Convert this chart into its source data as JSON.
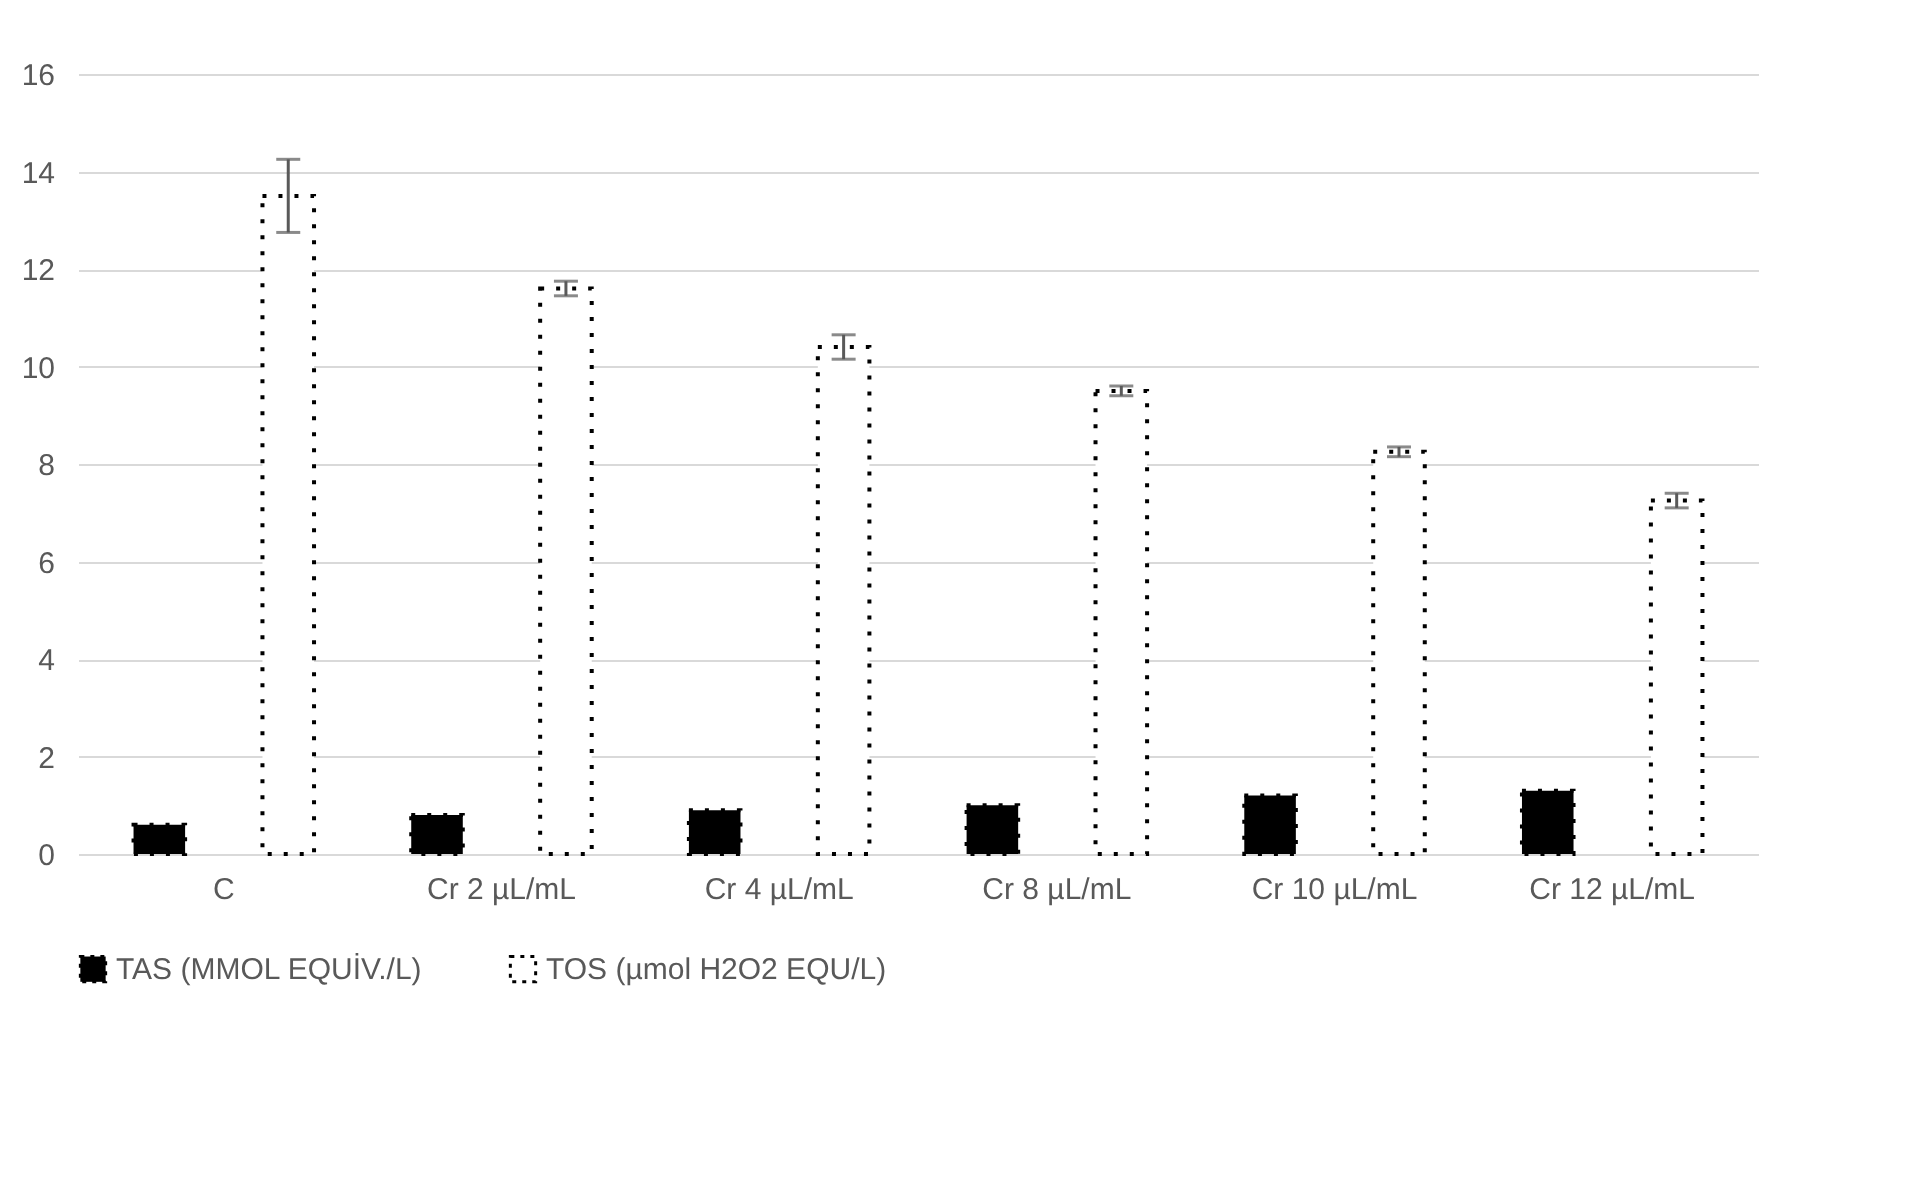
{
  "chart_data": {
    "type": "bar",
    "categories": [
      "C",
      "Cr 2 µL/mL",
      "Cr 4 µL/mL",
      "Cr 8 µL/mL",
      "Cr 10 µL/mL",
      "Cr 12 µL/mL"
    ],
    "series": [
      {
        "name": "TAS (MMOL EQUİV./L)",
        "color": "#000000",
        "values": [
          0.6,
          0.8,
          0.9,
          1.0,
          1.2,
          1.3
        ]
      },
      {
        "name": "TOS (µmol H2O2 EQU/L)",
        "color": "#ffffff",
        "values": [
          13.5,
          11.6,
          10.4,
          9.5,
          8.25,
          7.25
        ],
        "errors": [
          0.75,
          0.15,
          0.25,
          0.1,
          0.1,
          0.15
        ]
      }
    ],
    "ylim": [
      0,
      16
    ],
    "yticks": [
      0,
      2,
      4,
      6,
      8,
      10,
      12,
      14,
      16
    ],
    "grid": "y",
    "legend": "bottom"
  }
}
